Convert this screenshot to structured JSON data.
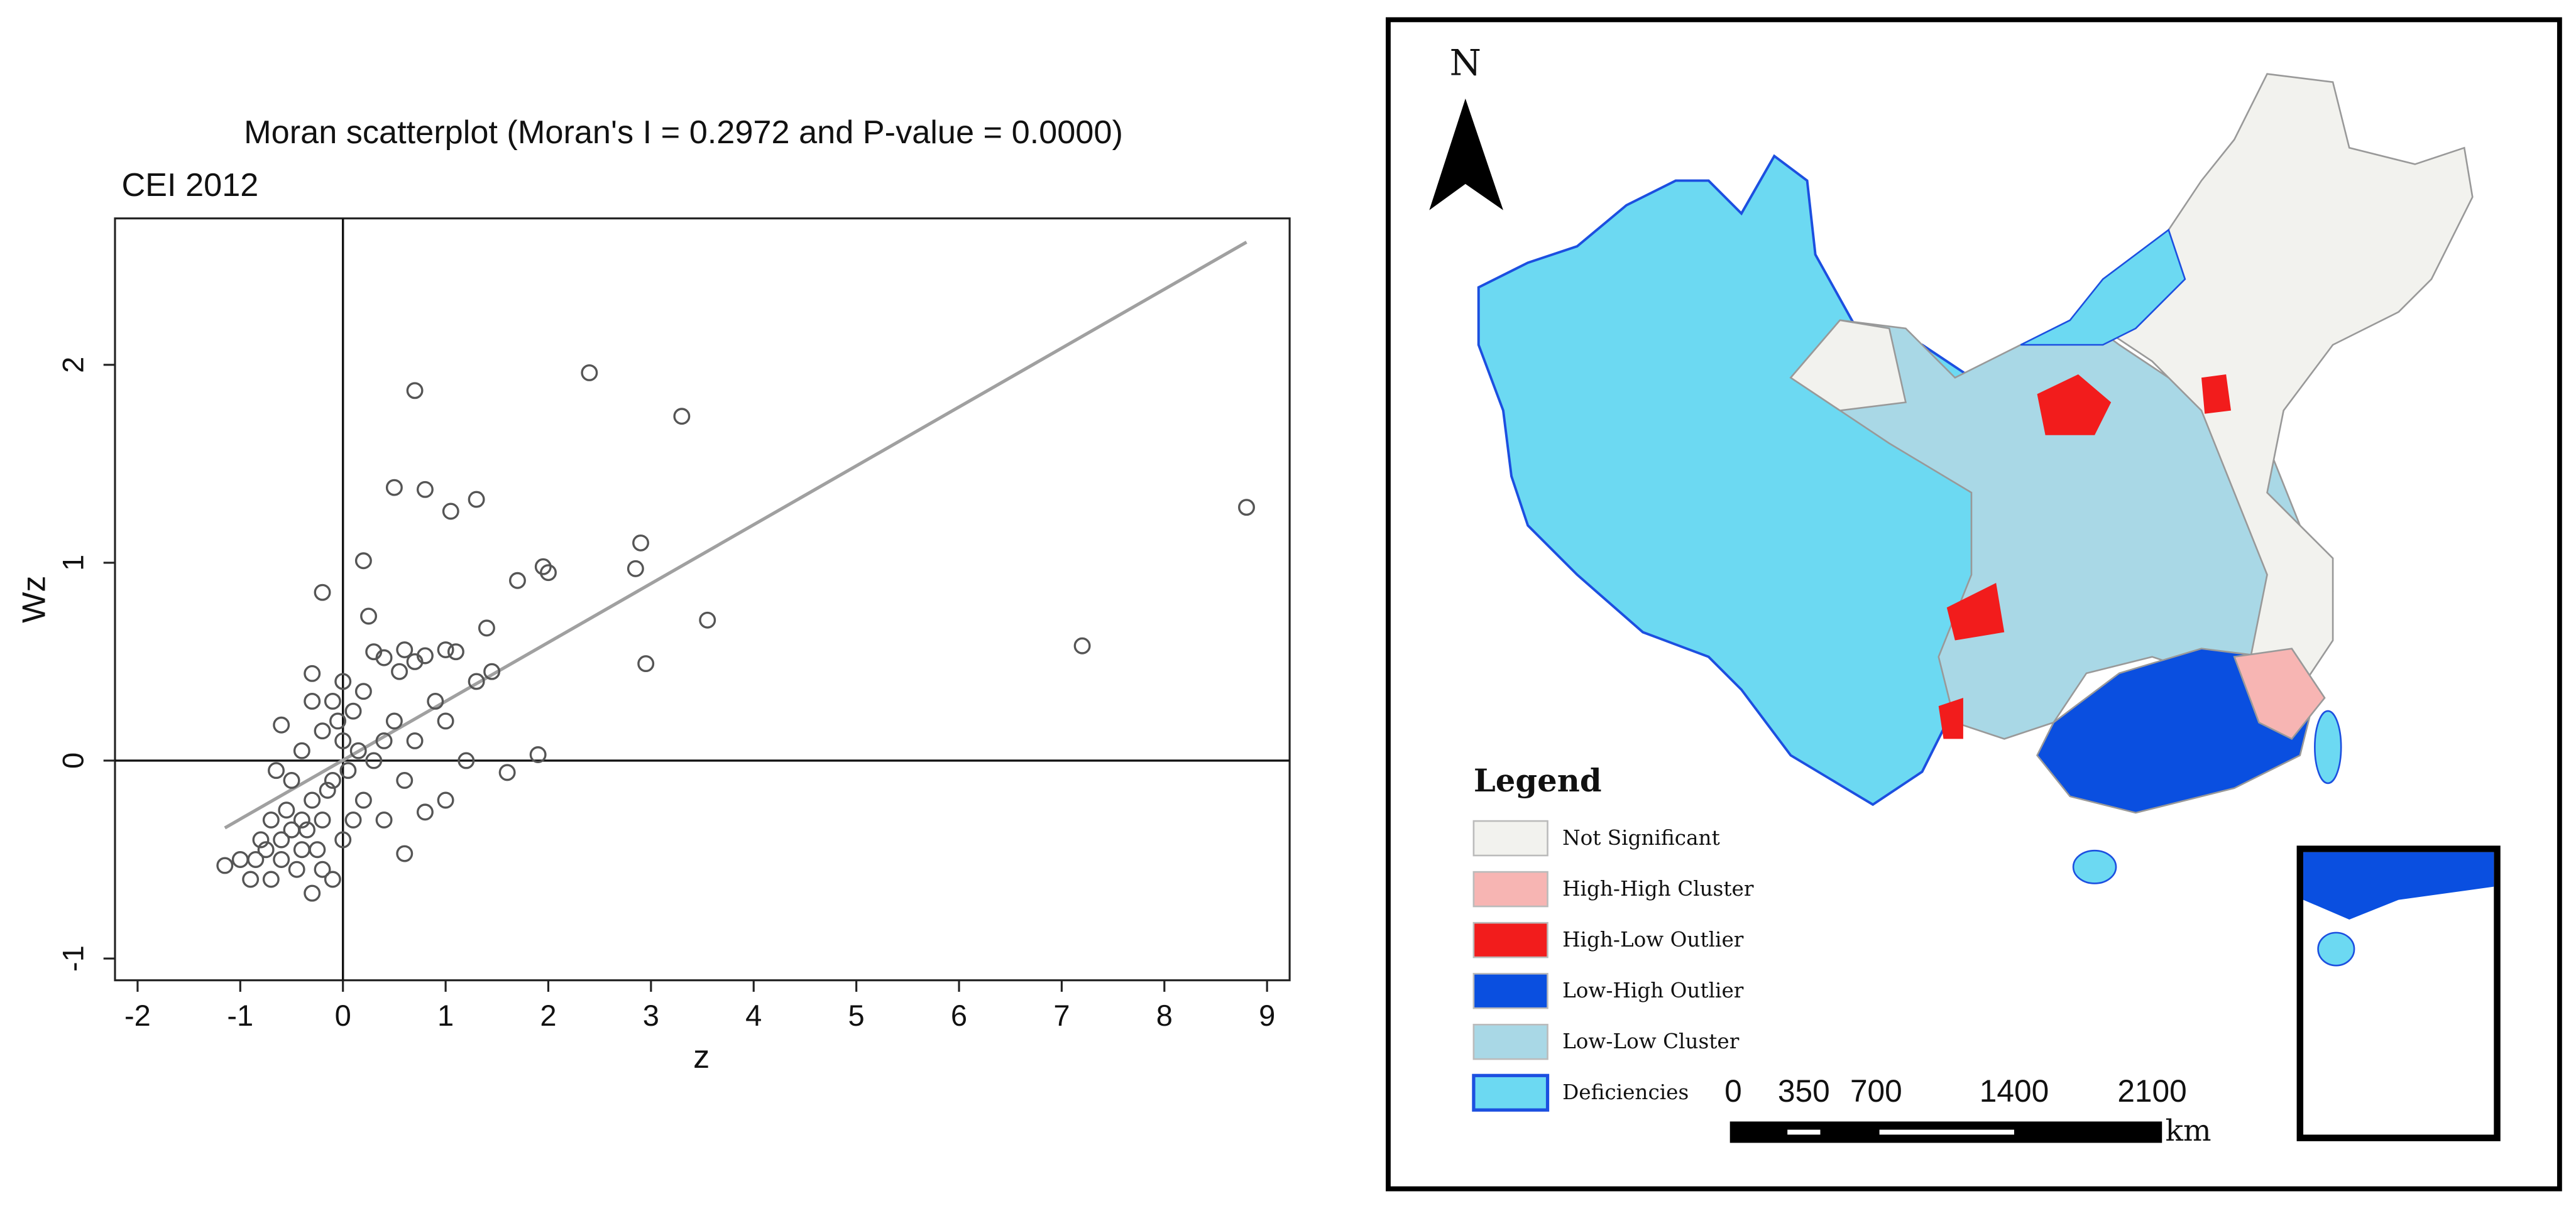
{
  "chart_data": {
    "type": "scatter",
    "title": "Moran scatterplot (Moran's I = 0.2972 and P-value = 0.0000)",
    "subtitle": "CEI 2012",
    "x_label": "z",
    "y_label": "Wz",
    "xlim": [
      -2.22,
      9.22
    ],
    "ylim": [
      -1.11,
      2.74
    ],
    "xticks": [
      -2,
      -1,
      0,
      1,
      2,
      3,
      4,
      5,
      6,
      7,
      8,
      9
    ],
    "yticks": [
      -1,
      0,
      1,
      2
    ],
    "color": "#555555",
    "reference_lines": [
      {
        "axis": "x",
        "value": 0
      },
      {
        "axis": "y",
        "value": 0
      }
    ],
    "fit_line": {
      "color": "#a0a0a0",
      "x": [
        -1.15,
        8.8
      ],
      "y": [
        -0.34,
        2.62
      ]
    },
    "x": [
      8.8,
      7.2,
      2.4,
      3.3,
      0.7,
      0.5,
      0.8,
      1.05,
      1.3,
      2.85,
      2.9,
      3.55,
      2.95,
      1.95,
      2.0,
      1.7,
      1.9,
      1.6,
      0.2,
      -0.2,
      0.25,
      1.4,
      1.45,
      1.3,
      1.0,
      1.1,
      0.6,
      0.7,
      0.8,
      0.55,
      0.3,
      0.4,
      -0.3,
      0.0,
      0.1,
      -0.1,
      -0.3,
      0.5,
      0.9,
      1.0,
      0.7,
      0.3,
      0.6,
      1.0,
      0.8,
      0.6,
      1.2,
      -0.6,
      -0.4,
      -0.2,
      0.0,
      -0.1,
      0.2,
      0.4,
      -1.15,
      -1.0,
      -0.9,
      -0.8,
      -0.7,
      -0.6,
      -0.5,
      -0.4,
      -0.3,
      -0.3,
      -0.2,
      -0.1,
      0.0,
      0.1,
      -0.5,
      -0.65,
      -0.7,
      -0.45,
      -0.55,
      -0.35,
      -0.25,
      -0.85,
      -0.75,
      -0.6,
      -0.4,
      -0.2,
      -0.15,
      0.05,
      0.15,
      -0.05,
      0.4,
      0.2
    ],
    "y": [
      1.28,
      0.58,
      1.96,
      1.74,
      1.87,
      1.38,
      1.37,
      1.26,
      1.32,
      0.97,
      1.1,
      0.71,
      0.49,
      0.98,
      0.95,
      0.91,
      0.03,
      -0.06,
      1.01,
      0.85,
      0.73,
      0.67,
      0.45,
      0.4,
      0.56,
      0.55,
      0.56,
      0.5,
      0.53,
      0.45,
      0.55,
      0.52,
      0.44,
      0.4,
      0.25,
      0.3,
      0.3,
      0.2,
      0.3,
      0.2,
      0.1,
      0.0,
      -0.1,
      -0.2,
      -0.26,
      -0.47,
      0.0,
      0.18,
      0.05,
      0.15,
      0.1,
      -0.1,
      -0.2,
      -0.3,
      -0.53,
      -0.5,
      -0.6,
      -0.4,
      -0.3,
      -0.5,
      -0.35,
      -0.45,
      -0.67,
      -0.2,
      -0.55,
      -0.6,
      -0.4,
      -0.3,
      -0.1,
      -0.05,
      -0.6,
      -0.55,
      -0.25,
      -0.35,
      -0.45,
      -0.5,
      -0.45,
      -0.4,
      -0.3,
      -0.3,
      -0.15,
      -0.05,
      0.05,
      0.2,
      0.1,
      0.35
    ]
  },
  "map": {
    "north": "N",
    "legend": {
      "title": "Legend",
      "items": [
        {
          "label": "Not Significant",
          "color": "#f2f2ee"
        },
        {
          "label": "High-High Cluster",
          "color": "#f7b5b3"
        },
        {
          "label": "High-Low Outlier",
          "color": "#f21c1c"
        },
        {
          "label": "Low-High Outlier",
          "color": "#0a4fe0"
        },
        {
          "label": "Low-Low Cluster",
          "color": "#a9d8e6"
        },
        {
          "label": "Deficiencies",
          "color": "#6cd9f2"
        }
      ]
    },
    "scale": {
      "labels": [
        "0",
        "350",
        "700",
        "1400",
        "2100"
      ],
      "unit": "km"
    }
  }
}
